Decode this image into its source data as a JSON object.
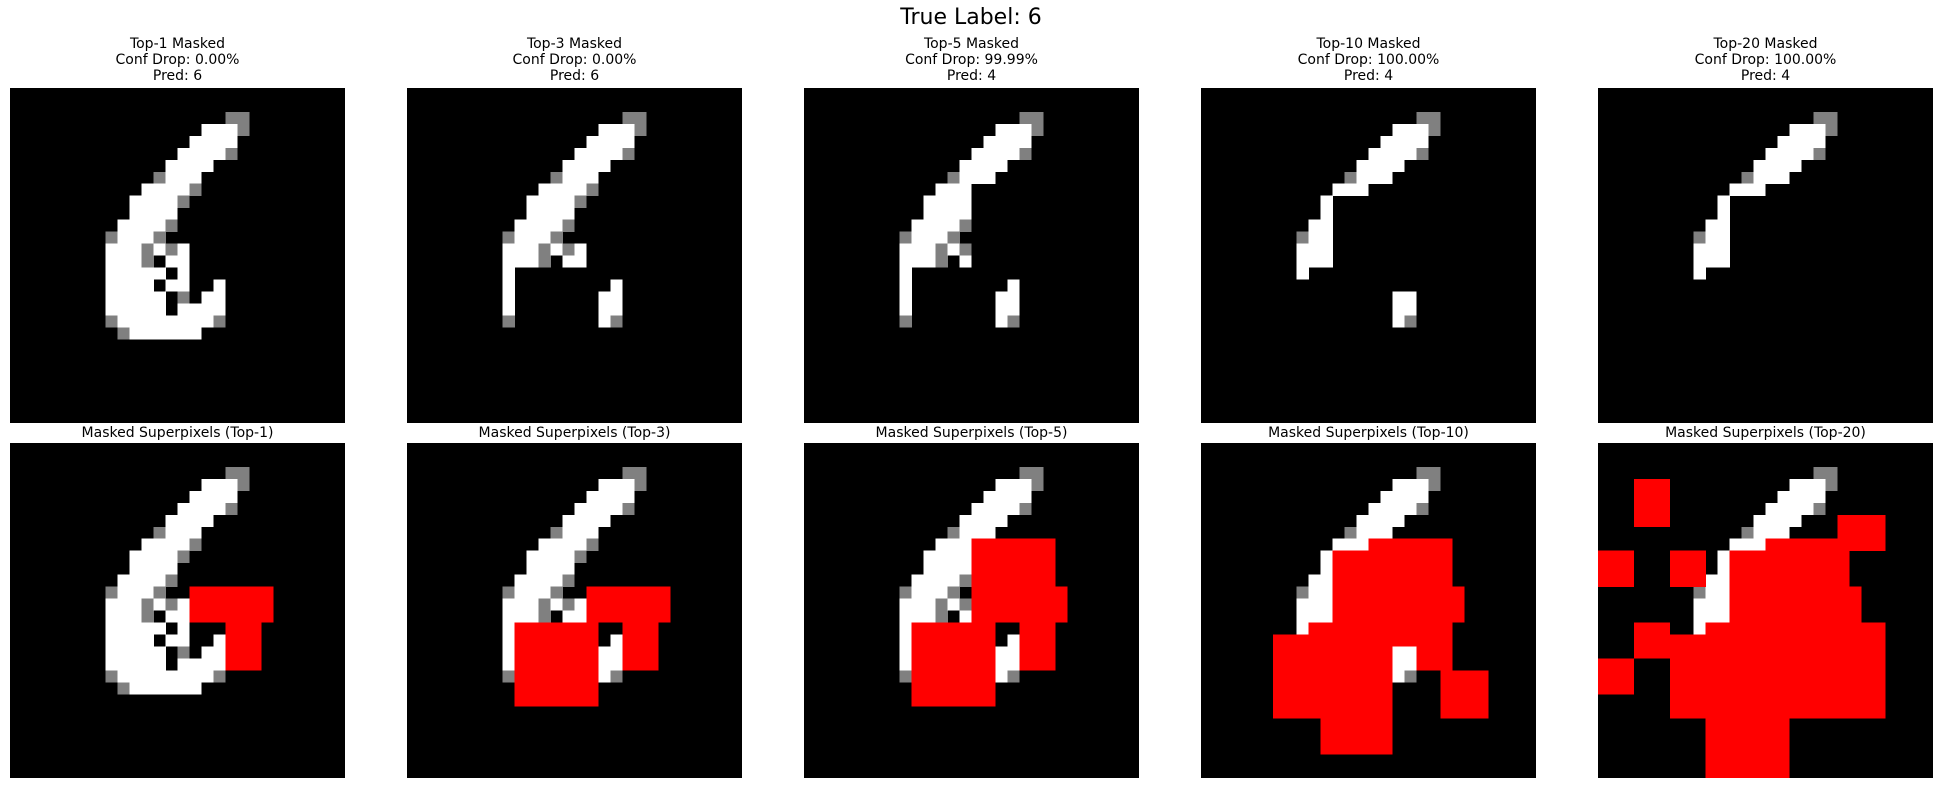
{
  "figure": {
    "title": "True Label: 6",
    "columns": [
      {
        "top_title": [
          "Top-1 Masked",
          "Conf Drop: 0.00%",
          "Pred: 6"
        ],
        "bottom_title": "Masked Superpixels (Top-1)"
      },
      {
        "top_title": [
          "Top-3 Masked",
          "Conf Drop: 0.00%",
          "Pred: 6"
        ],
        "bottom_title": "Masked Superpixels (Top-3)"
      },
      {
        "top_title": [
          "Top-5 Masked",
          "Conf Drop: 99.99%",
          "Pred: 4"
        ],
        "bottom_title": "Masked Superpixels (Top-5)"
      },
      {
        "top_title": [
          "Top-10 Masked",
          "Conf Drop: 100.00%",
          "Pred: 4"
        ],
        "bottom_title": "Masked Superpixels (Top-10)"
      },
      {
        "top_title": [
          "Top-20 Masked",
          "Conf Drop: 100.00%",
          "Pred: 4"
        ],
        "bottom_title": "Masked Superpixels (Top-20)"
      }
    ]
  },
  "colors": {
    "background": "#000000",
    "digit": "#ffffff",
    "mask": "#ff0000",
    "gray": "#808080"
  }
}
